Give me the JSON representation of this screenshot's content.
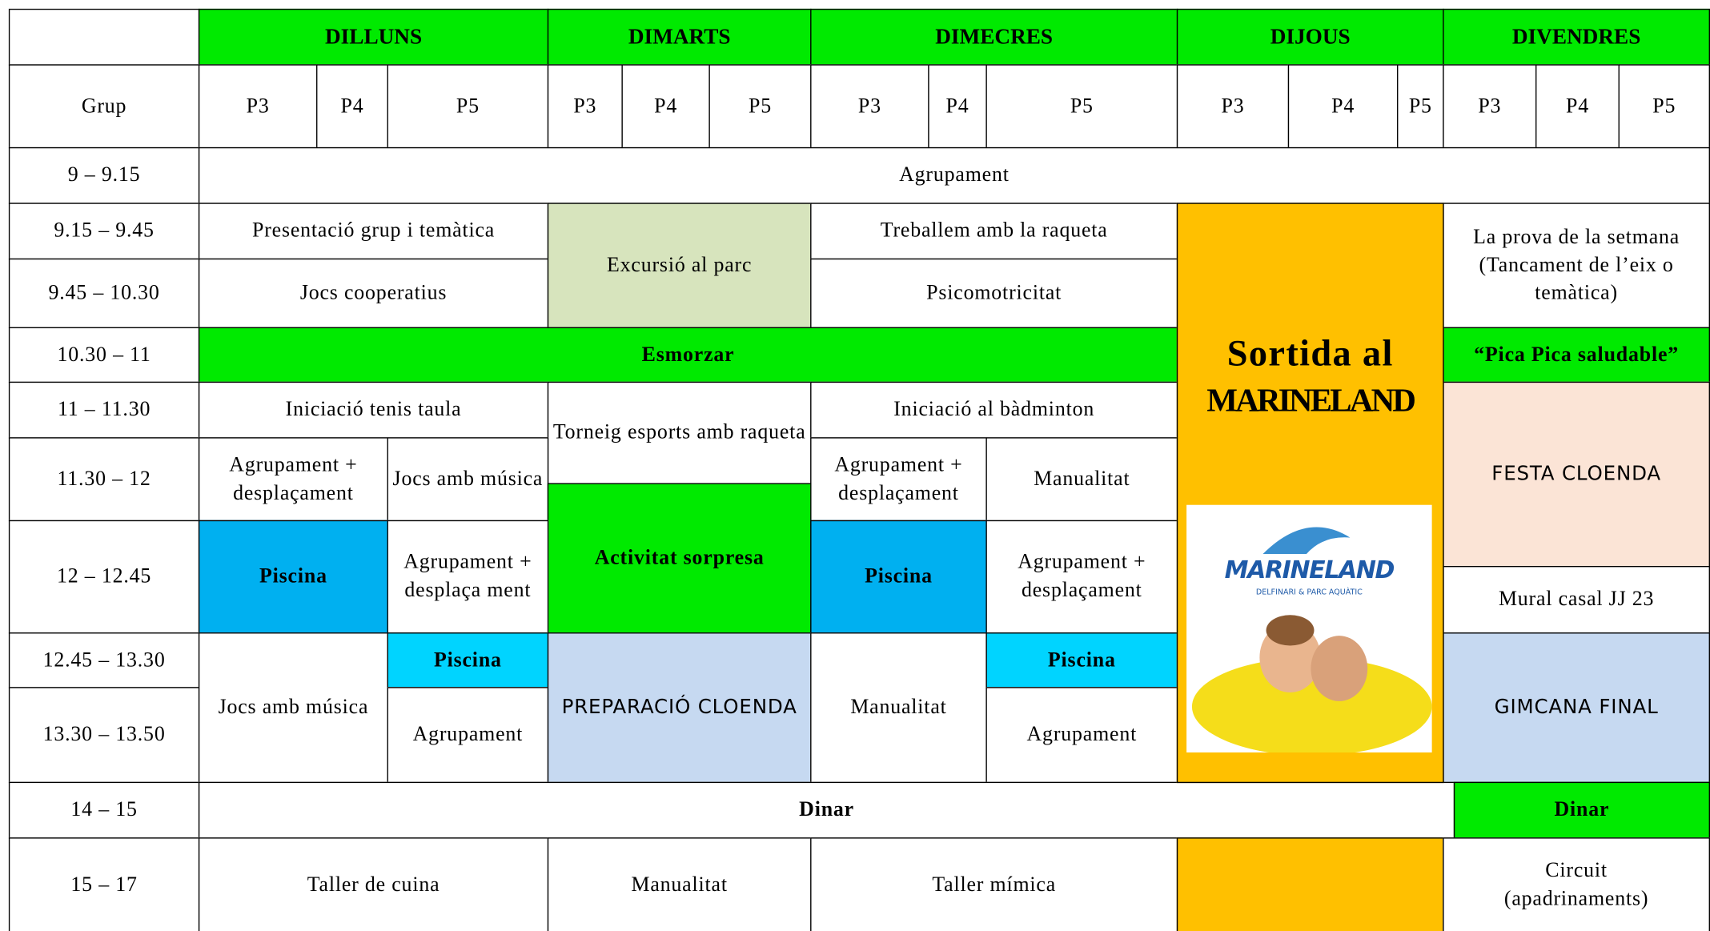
{
  "header": {
    "days": [
      "DILLUNS",
      "DIMARTS",
      "DIMECRES",
      "DIJOUS",
      "DIVENDRES"
    ],
    "group_label": "Grup",
    "groups": [
      "P3",
      "P4",
      "P5",
      "P3",
      "P4",
      "P5",
      "P3",
      "P4",
      "P5",
      "P3",
      "P4",
      "P5",
      "P3",
      "P4",
      "P5"
    ]
  },
  "times": [
    "9 – 9.15",
    "9.15 – 9.45",
    "9.45 – 10.30",
    "10.30 – 11",
    "11 – 11.30",
    "11.30 – 12",
    "12 – 12.45",
    "12.45 – 13.30",
    "13.30 – 13.50",
    "14 – 15",
    "15 – 17"
  ],
  "activities": [
    "Agrupament",
    "Presentació grup i temàtica",
    "Jocs cooperatius",
    "Excursió al parc",
    "Treballem amb la raqueta",
    "Psicomotricitat",
    "Sortida al",
    "MARINELAND",
    "La prova de la setmana",
    "(Tancament de l’eix o temàtica)",
    "Esmorzar",
    "“Pica Pica saludable”",
    "Iniciació tenis taula",
    "Torneig esports amb raqueta",
    "Iniciació al bàdminton",
    "FESTA CLOENDA",
    "Agrupament + desplaçament",
    "Jocs amb música",
    "Agrupament + desplaçament",
    "Manualitat",
    "Activitat sorpresa",
    "Piscina",
    "Agrupament + desplaça ment",
    "Piscina",
    "Agrupament + desplaçament",
    "Mural casal JJ 23",
    "Jocs amb música",
    "Piscina",
    "Agrupament",
    "PREPARACIÓ CLOENDA",
    "Manualitat",
    "Piscina",
    "Agrupament",
    "GIMCANA FINAL",
    "Dinar",
    "Dinar",
    "Taller de cuina",
    "Manualitat",
    "Taller mímica",
    "Circuit",
    "(apadrinaments)"
  ],
  "logo": {
    "title": "MARINELAND",
    "subtitle": "DELFINARI & PARC AQUÀTIC"
  }
}
